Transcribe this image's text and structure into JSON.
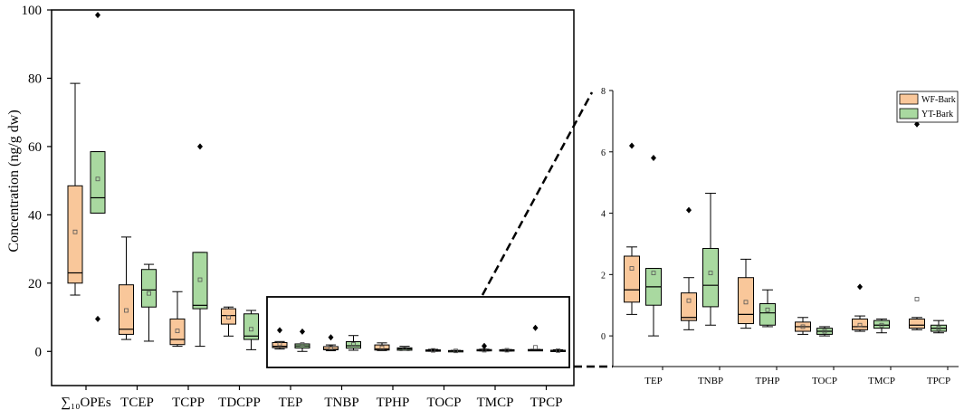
{
  "chart_data": [
    {
      "type": "box",
      "ylabel": "Concentration (ng/g dw)",
      "ylim": [
        -10,
        100
      ],
      "yticks": [
        0,
        20,
        40,
        60,
        80,
        100
      ],
      "categories": [
        "∑₁₀OPEs",
        "TCEP",
        "TCPP",
        "TDCPP",
        "TEP",
        "TNBP",
        "TPHP",
        "TOCP",
        "TMCP",
        "TPCP"
      ],
      "series": [
        {
          "name": "WF-Bark",
          "color": "#f9c79a",
          "boxes": [
            {
              "min": 16.5,
              "q1": 20,
              "median": 23,
              "q3": 48.5,
              "max": 78.5,
              "mean": 35,
              "outliers": []
            },
            {
              "min": 3.5,
              "q1": 5,
              "median": 6.5,
              "q3": 19.5,
              "max": 33.5,
              "mean": 12,
              "outliers": []
            },
            {
              "min": 1.5,
              "q1": 2,
              "median": 3.5,
              "q3": 9.5,
              "max": 17.5,
              "mean": 6,
              "outliers": []
            },
            {
              "min": 4.5,
              "q1": 8,
              "median": 10.5,
              "q3": 12.5,
              "max": 13,
              "mean": 10,
              "outliers": []
            },
            {
              "min": 0.7,
              "q1": 1.1,
              "median": 1.5,
              "q3": 2.6,
              "max": 2.9,
              "mean": 2.2,
              "outliers": [
                6.2
              ]
            },
            {
              "min": 0.2,
              "q1": 0.5,
              "median": 0.6,
              "q3": 1.4,
              "max": 1.9,
              "mean": 1.15,
              "outliers": [
                4.1
              ]
            },
            {
              "min": 0.25,
              "q1": 0.4,
              "median": 0.7,
              "q3": 1.9,
              "max": 2.5,
              "mean": 1.1,
              "outliers": []
            },
            {
              "min": 0.05,
              "q1": 0.15,
              "median": 0.3,
              "q3": 0.45,
              "max": 0.6,
              "mean": 0.3,
              "outliers": []
            },
            {
              "min": 0.15,
              "q1": 0.2,
              "median": 0.3,
              "q3": 0.55,
              "max": 0.65,
              "mean": 0.35,
              "outliers": [
                1.6
              ]
            },
            {
              "min": 0.2,
              "q1": 0.25,
              "median": 0.35,
              "q3": 0.55,
              "max": 0.6,
              "mean": 1.2,
              "outliers": [
                6.9
              ]
            }
          ]
        },
        {
          "name": "YT-Bark",
          "color": "#a9d9a0",
          "boxes": [
            {
              "min": 40.5,
              "q1": 40.5,
              "median": 45,
              "q3": 58.5,
              "max": 58.5,
              "mean": 50.5,
              "outliers": [
                98.5,
                9.5
              ]
            },
            {
              "min": 3,
              "q1": 13,
              "median": 18,
              "q3": 24,
              "max": 25.5,
              "mean": 17,
              "outliers": []
            },
            {
              "min": 1.5,
              "q1": 12.5,
              "median": 13.5,
              "q3": 29,
              "max": 29,
              "mean": 21,
              "outliers": [
                60
              ]
            },
            {
              "min": 0.5,
              "q1": 3.5,
              "median": 4.5,
              "q3": 11,
              "max": 12,
              "mean": 6.5,
              "outliers": []
            },
            {
              "min": 0,
              "q1": 1,
              "median": 1.6,
              "q3": 2.2,
              "max": 2.2,
              "mean": 2.05,
              "outliers": [
                5.8
              ]
            },
            {
              "min": 0.35,
              "q1": 0.95,
              "median": 1.65,
              "q3": 2.85,
              "max": 4.65,
              "mean": 2.05,
              "outliers": []
            },
            {
              "min": 0.3,
              "q1": 0.35,
              "median": 0.75,
              "q3": 1.05,
              "max": 1.5,
              "mean": 0.85,
              "outliers": []
            },
            {
              "min": 0.0,
              "q1": 0.05,
              "median": 0.15,
              "q3": 0.25,
              "max": 0.3,
              "mean": 0.15,
              "outliers": []
            },
            {
              "min": 0.1,
              "q1": 0.25,
              "median": 0.35,
              "q3": 0.5,
              "max": 0.55,
              "mean": 0.35,
              "outliers": []
            },
            {
              "min": 0.1,
              "q1": 0.15,
              "median": 0.25,
              "q3": 0.35,
              "max": 0.5,
              "mean": 0.25,
              "outliers": []
            }
          ]
        }
      ]
    },
    {
      "type": "box",
      "ylabel": "",
      "ylim": [
        -1,
        8
      ],
      "yticks": [
        0,
        2,
        4,
        6,
        8
      ],
      "categories": [
        "TEP",
        "TNBP",
        "TPHP",
        "TOCP",
        "TMCP",
        "TPCP"
      ],
      "legend": {
        "position": "top-right",
        "entries": [
          "WF-Bark",
          "YT-Bark"
        ]
      },
      "note": "zoomed view of the boxed region"
    }
  ]
}
